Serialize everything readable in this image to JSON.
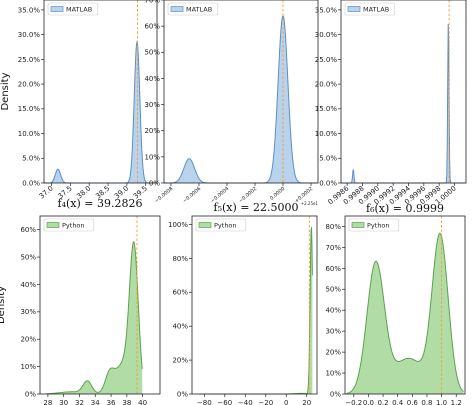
{
  "colors": {
    "blue_fill": "#b9d3ec",
    "blue_line": "#5b8fc9",
    "green_fill": "#b2dca6",
    "green_line": "#5aa24d",
    "vline": "#f0a030"
  },
  "chart_data": [
    {
      "id": "p1",
      "type": "area",
      "fill": "blue",
      "legend": "MATLAB",
      "ylabel": "Density",
      "title": "",
      "xlim": [
        36.8,
        39.8
      ],
      "ylim": [
        0,
        0.37
      ],
      "xticks": [
        37.0,
        37.5,
        38.0,
        38.5,
        39.0,
        39.5
      ],
      "xtick_labels": [
        "37.0",
        "37.5",
        "38.0",
        "38.5",
        "39.0",
        "39.5"
      ],
      "xtick_rotate": true,
      "yticks": [
        0,
        0.05,
        0.1,
        0.15,
        0.2,
        0.25,
        0.3,
        0.35
      ],
      "ytick_labels": [
        "0.0%",
        "5.0%",
        "10.0%",
        "15.0%",
        "20.0%",
        "25.0%",
        "30.0%",
        "35.0%"
      ],
      "vline": 39.2826,
      "peaks": [
        {
          "mu": 37.17,
          "sigma": 0.07,
          "h": 0.028
        },
        {
          "mu": 39.27,
          "sigma": 0.075,
          "h": 0.285
        }
      ]
    },
    {
      "id": "p2",
      "type": "area",
      "fill": "blue",
      "legend": "MATLAB",
      "ylabel": "",
      "title": "",
      "xlim": [
        -0.00085,
        0.00025
      ],
      "ylim": [
        0,
        0.7
      ],
      "xticks": [
        -0.0008,
        -0.0006,
        -0.0004,
        -0.0002,
        0.0,
        0.0002
      ],
      "xtick_labels": [
        "−0.0008",
        "−0.0006",
        "−0.0004",
        "−0.0002",
        "0.0000",
        "+0.0002"
      ],
      "xtick_small": true,
      "xtick_rotate": true,
      "offset_label": "+2.25e1",
      "yticks": [
        0,
        0.1,
        0.2,
        0.3,
        0.4,
        0.5,
        0.6,
        0.7
      ],
      "ytick_labels": [
        "0%",
        "10%",
        "20%",
        "30%",
        "40%",
        "50%",
        "60%",
        "70%"
      ],
      "vline": 0.0,
      "peaks": [
        {
          "mu": -0.00067,
          "sigma": 3.8e-05,
          "h": 0.093
        },
        {
          "mu": 0.0,
          "sigma": 3.5e-05,
          "h": 0.64
        }
      ]
    },
    {
      "id": "p3",
      "type": "area",
      "fill": "blue",
      "legend": "MATLAB",
      "ylabel": "",
      "title": "",
      "xlim": [
        0.99852,
        1.00015
      ],
      "ylim": [
        0,
        0.37
      ],
      "xticks": [
        0.9986,
        0.9988,
        0.999,
        0.9992,
        0.9994,
        0.9996,
        0.9998,
        1.0
      ],
      "xtick_labels": [
        "0.9986",
        "0.9988",
        "0.9990",
        "0.9992",
        "0.9994",
        "0.9996",
        "0.9998",
        "1.0000"
      ],
      "xtick_rotate": true,
      "yticks": [
        0,
        0.05,
        0.1,
        0.15,
        0.2,
        0.25,
        0.3,
        0.35
      ],
      "ytick_labels": [
        "0.0%",
        "5.0%",
        "10.0%",
        "15.0%",
        "20.0%",
        "25.0%",
        "30.0%",
        "35.0%"
      ],
      "vline": 0.99993,
      "peaks": [
        {
          "mu": 0.99868,
          "sigma": 8.5e-06,
          "h": 0.028
        },
        {
          "mu": 0.99992,
          "sigma": 8.5e-06,
          "h": 0.33
        }
      ]
    },
    {
      "id": "p4",
      "type": "area",
      "fill": "green",
      "legend": "Python",
      "ylabel": "Density",
      "title": "f₄(x) = 39.2826",
      "xlim": [
        27,
        42.2
      ],
      "ylim": [
        0,
        0.65
      ],
      "xticks": [
        28,
        30,
        32,
        34,
        36,
        38,
        40
      ],
      "xtick_labels": [
        "28",
        "30",
        "32",
        "34",
        "36",
        "38",
        "40"
      ],
      "yticks": [
        0,
        0.1,
        0.2,
        0.3,
        0.4,
        0.5,
        0.6
      ],
      "ytick_labels": [
        "0%",
        "10%",
        "20%",
        "30%",
        "40%",
        "50%",
        "60%"
      ],
      "vline": 39.2826,
      "peaks": [
        {
          "mu": 38.9,
          "sigma": 0.55,
          "h": 0.5
        },
        {
          "mu": 37.6,
          "sigma": 1.1,
          "h": 0.11
        },
        {
          "mu": 35.8,
          "sigma": 0.55,
          "h": 0.06
        },
        {
          "mu": 33.0,
          "sigma": 0.55,
          "h": 0.045
        },
        {
          "mu": 31.0,
          "sigma": 1.5,
          "h": 0.008
        }
      ],
      "cut": [
        27.8,
        39.95
      ]
    },
    {
      "id": "p5",
      "type": "area",
      "fill": "green",
      "legend": "Python",
      "ylabel": "",
      "title": "f₅(x) = 22.5000",
      "xlim": [
        -92,
        30
      ],
      "ylim": [
        0,
        1.05
      ],
      "xticks": [
        -80,
        -60,
        -40,
        -20,
        0,
        20
      ],
      "xtick_labels": [
        "−80",
        "−60",
        "−40",
        "−20",
        "0",
        "20"
      ],
      "yticks": [
        0,
        0.2,
        0.4,
        0.6,
        0.8,
        1.0
      ],
      "ytick_labels": [
        "0%",
        "20%",
        "40%",
        "60%",
        "80%",
        "100%"
      ],
      "vline": 22.5,
      "peaks": [
        {
          "mu": 24.5,
          "sigma": 1.2,
          "h": 0.99
        },
        {
          "mu": 15,
          "sigma": 6,
          "h": 0.004
        }
      ],
      "cut": [
        -85,
        25.5
      ]
    },
    {
      "id": "p6",
      "type": "area",
      "fill": "green",
      "legend": "Python",
      "ylabel": "",
      "title": "f₆(x) = 0.9999",
      "xlim": [
        -0.32,
        1.32
      ],
      "ylim": [
        0,
        0.85
      ],
      "xticks": [
        -0.2,
        0.0,
        0.2,
        0.4,
        0.6,
        0.8,
        1.0,
        1.2
      ],
      "xtick_labels": [
        "−0.2",
        "0.0",
        "0.2",
        "0.4",
        "0.6",
        "0.8",
        "1.0",
        "1.2"
      ],
      "yticks": [
        0,
        0.1,
        0.2,
        0.3,
        0.4,
        0.5,
        0.6,
        0.7,
        0.8
      ],
      "ytick_labels": [
        "0%",
        "10%",
        "20%",
        "30%",
        "40%",
        "50%",
        "60%",
        "70%",
        "80%"
      ],
      "vline": 0.9999,
      "peaks": [
        {
          "mu": 0.1,
          "sigma": 0.12,
          "h": 0.62
        },
        {
          "mu": 0.98,
          "sigma": 0.11,
          "h": 0.75
        },
        {
          "mu": 0.55,
          "sigma": 0.2,
          "h": 0.17
        }
      ],
      "cut": [
        -0.3,
        1.3
      ]
    }
  ]
}
